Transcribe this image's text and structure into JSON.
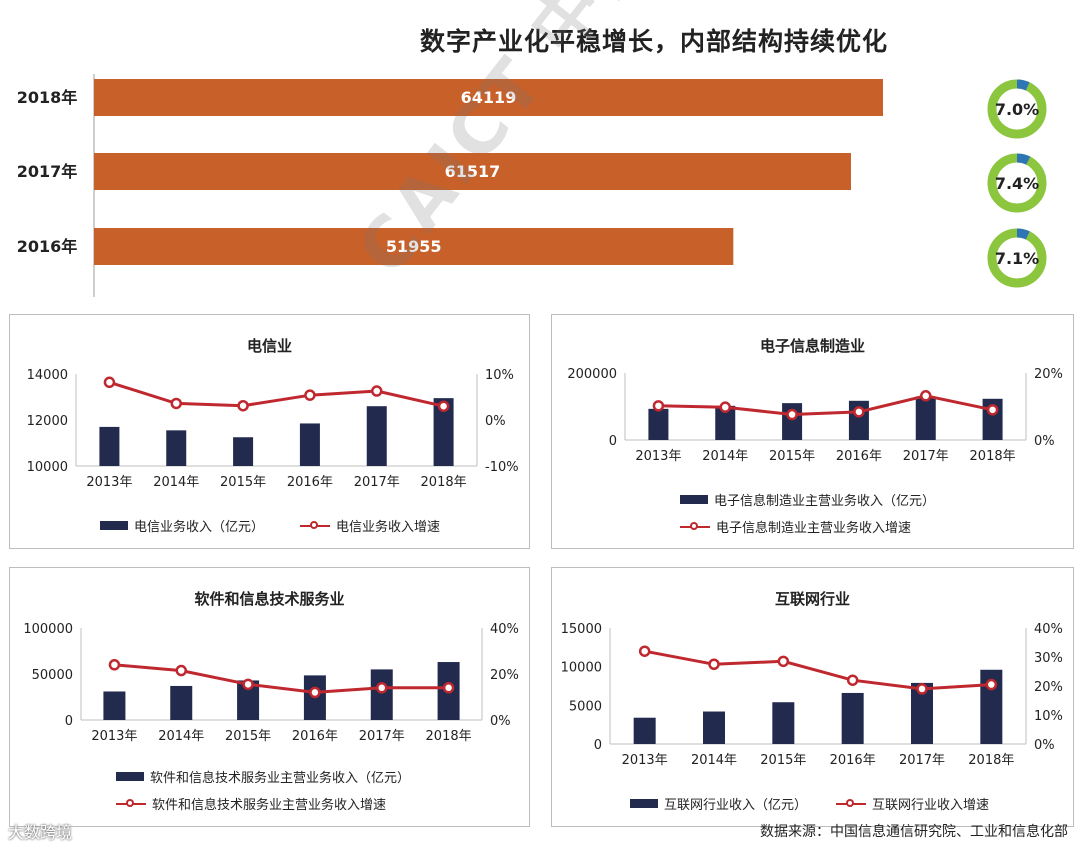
{
  "title": "数字产业化平稳增长，内部结构持续优化",
  "watermark": "CAICT 中国信通院",
  "brand": "大数跨境",
  "source": "数据来源：中国信息通信研究院、工业和信息化部",
  "colors": {
    "bar_orange": "#c8602a",
    "bar_navy": "#222a4e",
    "line_red": "#c0282f",
    "ring_green": "#8cc63e",
    "ring_blue": "#2e75b6"
  },
  "chart_data": [
    {
      "type": "bar",
      "orientation": "horizontal",
      "categories": [
        "2018年",
        "2017年",
        "2016年"
      ],
      "values": [
        64119,
        61517,
        51955
      ],
      "value_labels": [
        "64119",
        "61517",
        "51955"
      ],
      "ring_labels": [
        "7.0%",
        "7.4%",
        "7.1%"
      ],
      "ring_values": [
        7.0,
        7.4,
        7.1
      ]
    },
    {
      "type": "bar",
      "title": "电信业",
      "categories": [
        "2013年",
        "2014年",
        "2015年",
        "2016年",
        "2017年",
        "2018年"
      ],
      "series": [
        {
          "name": "电信业务收入（亿元）",
          "values": [
            11700,
            11550,
            11250,
            11850,
            12600,
            12950
          ]
        },
        {
          "name": "电信业务收入增速",
          "values": [
            8.2,
            3.6,
            3.1,
            5.4,
            6.3,
            3.0
          ]
        }
      ],
      "left_axis": {
        "min": 10000,
        "max": 14000,
        "ticks": [
          "14000",
          "12000",
          "10000"
        ]
      },
      "right_axis": {
        "min": -10,
        "max": 10,
        "ticks": [
          "10%",
          "0%",
          "-10%"
        ]
      }
    },
    {
      "type": "bar",
      "title": "电子信息制造业",
      "categories": [
        "2013年",
        "2014年",
        "2015年",
        "2016年",
        "2017年",
        "2018年"
      ],
      "series": [
        {
          "name": "电子信息制造业主营业务收入（亿元）",
          "values": [
            93000,
            102000,
            110000,
            117000,
            130000,
            123000
          ]
        },
        {
          "name": "电子信息制造业主营业务收入增速",
          "values": [
            10.2,
            9.8,
            7.6,
            8.4,
            13.2,
            9.0
          ]
        }
      ],
      "left_axis": {
        "min": 0,
        "max": 200000,
        "ticks": [
          "200000",
          "0"
        ]
      },
      "right_axis": {
        "min": 0,
        "max": 20,
        "ticks": [
          "20%",
          "0%"
        ]
      }
    },
    {
      "type": "bar",
      "title": "软件和信息技术服务业",
      "categories": [
        "2013年",
        "2014年",
        "2015年",
        "2016年",
        "2017年",
        "2018年"
      ],
      "series": [
        {
          "name": "软件和信息技术服务业主营业务收入（亿元）",
          "values": [
            31000,
            37000,
            43000,
            48500,
            55000,
            63000
          ]
        },
        {
          "name": "软件和信息技术服务业主营业务收入增速",
          "values": [
            24,
            21.5,
            15.5,
            12,
            14,
            14
          ]
        }
      ],
      "left_axis": {
        "min": 0,
        "max": 100000,
        "ticks": [
          "100000",
          "50000",
          "0"
        ]
      },
      "right_axis": {
        "min": 0,
        "max": 40,
        "ticks": [
          "40%",
          "20%",
          "0%"
        ]
      }
    },
    {
      "type": "bar",
      "title": "互联网行业",
      "categories": [
        "2013年",
        "2014年",
        "2015年",
        "2016年",
        "2017年",
        "2018年"
      ],
      "series": [
        {
          "name": "互联网行业收入（亿元）",
          "values": [
            3400,
            4200,
            5400,
            6600,
            7900,
            9600
          ]
        },
        {
          "name": "互联网行业收入增速",
          "values": [
            32,
            27.5,
            28.5,
            22,
            19,
            20.5
          ]
        }
      ],
      "left_axis": {
        "min": 0,
        "max": 15000,
        "ticks": [
          "15000",
          "10000",
          "5000",
          "0"
        ]
      },
      "right_axis": {
        "min": 0,
        "max": 40,
        "ticks": [
          "40%",
          "30%",
          "20%",
          "10%",
          "0%"
        ]
      }
    }
  ]
}
